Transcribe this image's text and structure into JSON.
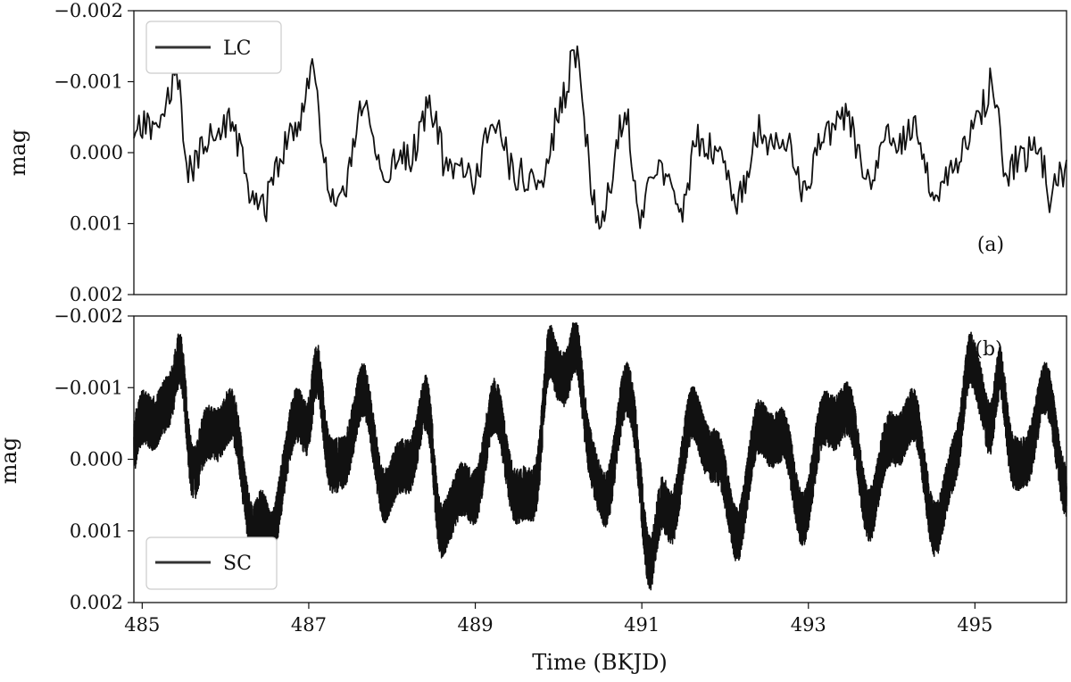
{
  "figure": {
    "xlabel": "Time (BKJD)"
  },
  "chart_data": [
    {
      "type": "line",
      "panel_tag": "(a)",
      "ylabel": "mag",
      "y_inverted": true,
      "ylim": [
        -0.002,
        0.002
      ],
      "xlim": [
        484.9,
        496.1
      ],
      "yticks": [
        "−0.002",
        "−0.001",
        "0.000",
        "0.001",
        "0.002"
      ],
      "ytick_values": [
        -0.002,
        -0.001,
        0.0,
        0.001,
        0.002
      ],
      "legend": "top-left",
      "series": [
        {
          "name": "LC",
          "color": "#111111",
          "cadence_days": 0.0204,
          "x_start": 484.9,
          "x_end": 496.1,
          "envelope_amplitude": 0.0009,
          "notable_points": [
            {
              "x": 485.4,
              "y": -0.001
            },
            {
              "x": 487.05,
              "y": -0.0012
            },
            {
              "x": 486.45,
              "y": 0.0008
            },
            {
              "x": 487.35,
              "y": 0.00085
            },
            {
              "x": 490.2,
              "y": -0.00145
            },
            {
              "x": 490.5,
              "y": 0.0009
            },
            {
              "x": 491.0,
              "y": 0.0009
            },
            {
              "x": 491.5,
              "y": 0.00075
            },
            {
              "x": 495.2,
              "y": -0.001
            },
            {
              "x": 495.9,
              "y": 0.0006
            }
          ]
        }
      ]
    },
    {
      "type": "line",
      "panel_tag": "(b)",
      "ylabel": "mag",
      "y_inverted": true,
      "ylim": [
        -0.002,
        0.002
      ],
      "xlim": [
        484.9,
        496.1
      ],
      "yticks": [
        "−0.002",
        "−0.001",
        "0.000",
        "0.001",
        "0.002"
      ],
      "ytick_values": [
        -0.002,
        -0.001,
        0.0,
        0.001,
        0.002
      ],
      "xticks": [
        "485",
        "487",
        "489",
        "491",
        "493",
        "495"
      ],
      "xtick_values": [
        485,
        487,
        489,
        491,
        493,
        495
      ],
      "legend": "bottom-left",
      "series": [
        {
          "name": "SC",
          "color": "#111111",
          "cadence_days": 0.00068,
          "x_start": 484.9,
          "x_end": 496.1,
          "envelope_amplitude": 0.0014,
          "notable_points": [
            {
              "x": 485.45,
              "y": -0.0014
            },
            {
              "x": 486.55,
              "y": 0.0011
            },
            {
              "x": 487.1,
              "y": -0.00125
            },
            {
              "x": 488.6,
              "y": 0.001
            },
            {
              "x": 489.9,
              "y": -0.0015
            },
            {
              "x": 490.2,
              "y": -0.0016
            },
            {
              "x": 491.1,
              "y": 0.00145
            },
            {
              "x": 494.95,
              "y": -0.0014
            },
            {
              "x": 495.3,
              "y": -0.0012
            }
          ]
        }
      ]
    }
  ]
}
